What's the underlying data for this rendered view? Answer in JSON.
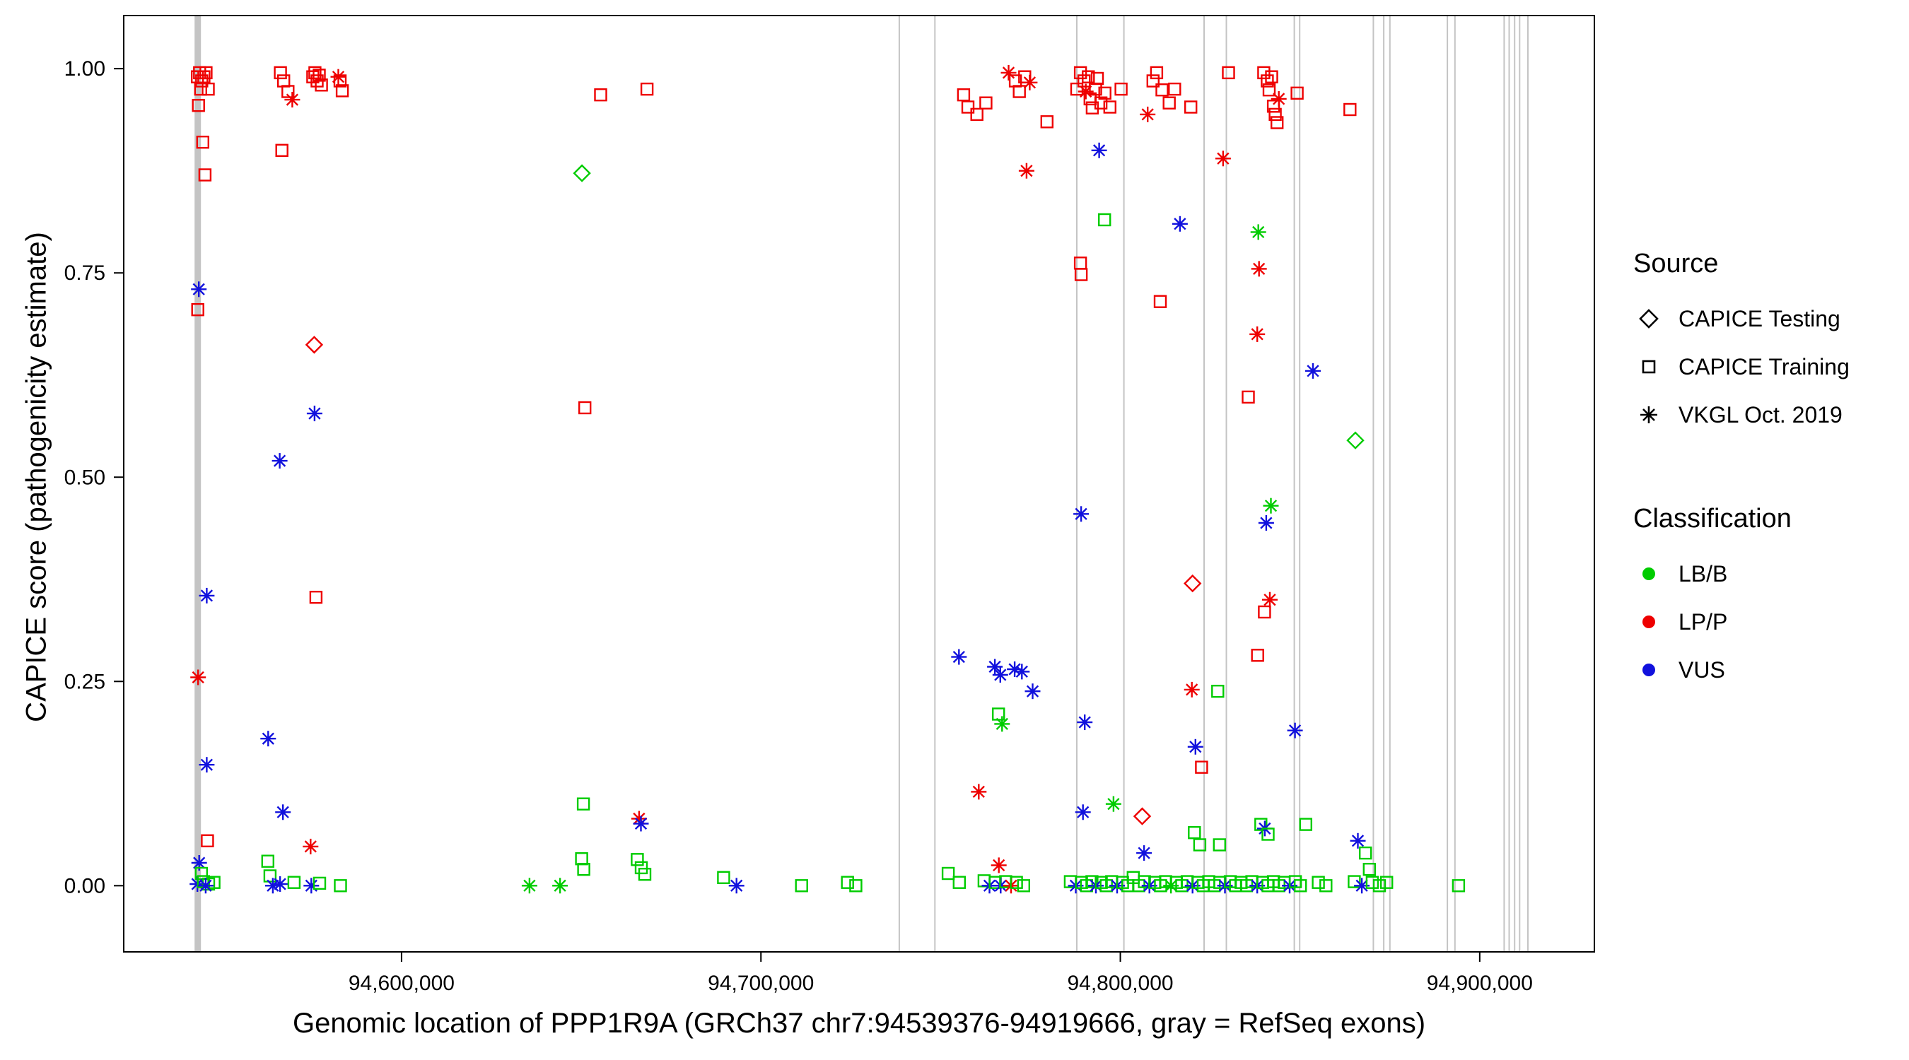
{
  "chart_data": {
    "type": "scatter",
    "title": "",
    "xlabel": "Genomic location of PPP1R9A (GRCh37 chr7:94539376-94919666, gray = RefSeq exons)",
    "ylabel": "CAPICE score (pathogenicity estimate)",
    "xlim": [
      94522700,
      94931900
    ],
    "ylim": [
      -0.081,
      1.065
    ],
    "grid": false,
    "legend_position": "right",
    "x_ticks": [
      {
        "v": 94600000,
        "label": "94,600,000"
      },
      {
        "v": 94700000,
        "label": "94,700,000"
      },
      {
        "v": 94800000,
        "label": "94,800,000"
      },
      {
        "v": 94900000,
        "label": "94,900,000"
      }
    ],
    "y_ticks": [
      {
        "v": 0.0,
        "label": "0.00"
      },
      {
        "v": 0.25,
        "label": "0.25"
      },
      {
        "v": 0.5,
        "label": "0.50"
      },
      {
        "v": 0.75,
        "label": "0.75"
      },
      {
        "v": 1.0,
        "label": "1.00"
      }
    ],
    "exon_color": "#C4C4C4",
    "exons": [
      {
        "x": 94543300,
        "w": 9
      },
      {
        "x": 94738500,
        "w": 2
      },
      {
        "x": 94748400,
        "w": 2
      },
      {
        "x": 94787900,
        "w": 2
      },
      {
        "x": 94801000,
        "w": 2
      },
      {
        "x": 94823300,
        "w": 2
      },
      {
        "x": 94829500,
        "w": 2
      },
      {
        "x": 94848400,
        "w": 2
      },
      {
        "x": 94849900,
        "w": 2
      },
      {
        "x": 94870400,
        "w": 2
      },
      {
        "x": 94873300,
        "w": 2
      },
      {
        "x": 94875000,
        "w": 2
      },
      {
        "x": 94891000,
        "w": 2
      },
      {
        "x": 94893100,
        "w": 2
      },
      {
        "x": 94906800,
        "w": 2
      },
      {
        "x": 94908200,
        "w": 2
      },
      {
        "x": 94909700,
        "w": 2
      },
      {
        "x": 94911100,
        "w": 2
      },
      {
        "x": 94913400,
        "w": 2
      }
    ],
    "class_colors": {
      "B": "#00CC00",
      "P": "#EE0000",
      "V": "#1111DD"
    },
    "shape_names": {
      "d": "diamond (CAPICE Testing)",
      "s": "square (CAPICE Training)",
      "a": "asterisk (VKGL Oct. 2019)"
    },
    "class_names": {
      "B": "LB/B",
      "P": "LP/P",
      "V": "VUS"
    },
    "legend": {
      "source": {
        "title": "Source",
        "items": [
          {
            "label": "CAPICE Testing",
            "shape": "diamond"
          },
          {
            "label": "CAPICE Training",
            "shape": "square"
          },
          {
            "label": "VKGL Oct. 2019",
            "shape": "asterisk"
          }
        ]
      },
      "classification": {
        "title": "Classification",
        "items": [
          {
            "label": "LB/B",
            "color": "#00CC00"
          },
          {
            "label": "LP/P",
            "color": "#EE0000"
          },
          {
            "label": "VUS",
            "color": "#1111DD"
          }
        ]
      }
    },
    "points_format": [
      "genomic_position",
      "capice_score",
      "shape",
      "classification"
    ],
    "points": [
      [
        94543200,
        0.99,
        "s",
        "P"
      ],
      [
        94543800,
        0.995,
        "s",
        "P"
      ],
      [
        94544400,
        0.985,
        "s",
        "P"
      ],
      [
        94545000,
        0.99,
        "s",
        "P"
      ],
      [
        94545600,
        0.995,
        "s",
        "P"
      ],
      [
        94544100,
        0.975,
        "s",
        "P"
      ],
      [
        94546200,
        0.975,
        "s",
        "P"
      ],
      [
        94543500,
        0.955,
        "s",
        "P"
      ],
      [
        94544700,
        0.91,
        "s",
        "P"
      ],
      [
        94545300,
        0.87,
        "s",
        "P"
      ],
      [
        94543600,
        0.73,
        "a",
        "V"
      ],
      [
        94543300,
        0.705,
        "s",
        "P"
      ],
      [
        94545800,
        0.355,
        "a",
        "V"
      ],
      [
        94543400,
        0.255,
        "a",
        "P"
      ],
      [
        94545800,
        0.148,
        "a",
        "V"
      ],
      [
        94546000,
        0.055,
        "s",
        "P"
      ],
      [
        94543700,
        0.028,
        "a",
        "V"
      ],
      [
        94544300,
        0.015,
        "s",
        "B"
      ],
      [
        94543200,
        0.002,
        "a",
        "V"
      ],
      [
        94544900,
        0.005,
        "s",
        "B"
      ],
      [
        94546300,
        0.002,
        "s",
        "B"
      ],
      [
        94547800,
        0.004,
        "s",
        "B"
      ],
      [
        94545500,
        0.0,
        "a",
        "V"
      ],
      [
        94566300,
        0.995,
        "s",
        "P"
      ],
      [
        94567200,
        0.985,
        "s",
        "P"
      ],
      [
        94568400,
        0.972,
        "s",
        "P"
      ],
      [
        94569600,
        0.962,
        "a",
        "P"
      ],
      [
        94566700,
        0.9,
        "s",
        "P"
      ],
      [
        94575300,
        0.99,
        "s",
        "P"
      ],
      [
        94575900,
        0.995,
        "s",
        "P"
      ],
      [
        94576500,
        0.985,
        "s",
        "P"
      ],
      [
        94577100,
        0.992,
        "s",
        "P"
      ],
      [
        94577700,
        0.98,
        "s",
        "P"
      ],
      [
        94582400,
        0.99,
        "a",
        "P"
      ],
      [
        94582900,
        0.985,
        "s",
        "P"
      ],
      [
        94583500,
        0.973,
        "s",
        "P"
      ],
      [
        94575700,
        0.662,
        "d",
        "P"
      ],
      [
        94575800,
        0.578,
        "a",
        "V"
      ],
      [
        94566100,
        0.52,
        "a",
        "V"
      ],
      [
        94576200,
        0.353,
        "s",
        "P"
      ],
      [
        94562900,
        0.18,
        "a",
        "V"
      ],
      [
        94567000,
        0.09,
        "a",
        "V"
      ],
      [
        94574700,
        0.048,
        "a",
        "P"
      ],
      [
        94562800,
        0.03,
        "s",
        "B"
      ],
      [
        94563400,
        0.012,
        "s",
        "B"
      ],
      [
        94564200,
        0.0,
        "a",
        "V"
      ],
      [
        94566200,
        0.002,
        "a",
        "V"
      ],
      [
        94570100,
        0.004,
        "s",
        "B"
      ],
      [
        94574900,
        0.0,
        "a",
        "V"
      ],
      [
        94577200,
        0.003,
        "s",
        "B"
      ],
      [
        94583000,
        0.0,
        "s",
        "B"
      ],
      [
        94650200,
        0.872,
        "d",
        "B"
      ],
      [
        94655400,
        0.968,
        "s",
        "P"
      ],
      [
        94668300,
        0.975,
        "s",
        "P"
      ],
      [
        94651000,
        0.585,
        "s",
        "P"
      ],
      [
        94650600,
        0.1,
        "s",
        "B"
      ],
      [
        94650100,
        0.033,
        "s",
        "B"
      ],
      [
        94650700,
        0.02,
        "s",
        "B"
      ],
      [
        94666100,
        0.082,
        "a",
        "P"
      ],
      [
        94666600,
        0.076,
        "a",
        "V"
      ],
      [
        94665600,
        0.032,
        "s",
        "B"
      ],
      [
        94666700,
        0.022,
        "s",
        "B"
      ],
      [
        94667700,
        0.014,
        "s",
        "B"
      ],
      [
        94635600,
        0.0,
        "a",
        "B"
      ],
      [
        94644100,
        0.0,
        "a",
        "B"
      ],
      [
        94689600,
        0.01,
        "s",
        "B"
      ],
      [
        94693200,
        0.0,
        "a",
        "V"
      ],
      [
        94711300,
        0.0,
        "s",
        "B"
      ],
      [
        94724100,
        0.004,
        "s",
        "B"
      ],
      [
        94726400,
        0.0,
        "s",
        "B"
      ],
      [
        94756400,
        0.968,
        "s",
        "P"
      ],
      [
        94757600,
        0.953,
        "s",
        "P"
      ],
      [
        94760100,
        0.944,
        "s",
        "P"
      ],
      [
        94762600,
        0.958,
        "s",
        "P"
      ],
      [
        94768900,
        0.995,
        "a",
        "P"
      ],
      [
        94770800,
        0.985,
        "s",
        "P"
      ],
      [
        94771900,
        0.972,
        "s",
        "P"
      ],
      [
        94773400,
        0.99,
        "s",
        "P"
      ],
      [
        94774800,
        0.983,
        "a",
        "P"
      ],
      [
        94773900,
        0.875,
        "a",
        "P"
      ],
      [
        94779600,
        0.935,
        "s",
        "P"
      ],
      [
        94787900,
        0.975,
        "s",
        "P"
      ],
      [
        94788900,
        0.995,
        "s",
        "P"
      ],
      [
        94789900,
        0.985,
        "s",
        "P"
      ],
      [
        94790400,
        0.972,
        "a",
        "P"
      ],
      [
        94791100,
        0.99,
        "s",
        "P"
      ],
      [
        94791600,
        0.963,
        "s",
        "P"
      ],
      [
        94792200,
        0.952,
        "s",
        "P"
      ],
      [
        94793100,
        0.975,
        "s",
        "P"
      ],
      [
        94793600,
        0.988,
        "s",
        "P"
      ],
      [
        94794600,
        0.958,
        "s",
        "P"
      ],
      [
        94795700,
        0.97,
        "s",
        "P"
      ],
      [
        94797100,
        0.953,
        "s",
        "P"
      ],
      [
        94800200,
        0.975,
        "s",
        "P"
      ],
      [
        94807600,
        0.944,
        "a",
        "P"
      ],
      [
        94809100,
        0.985,
        "s",
        "P"
      ],
      [
        94810100,
        0.995,
        "s",
        "P"
      ],
      [
        94811600,
        0.974,
        "s",
        "P"
      ],
      [
        94813600,
        0.958,
        "s",
        "P"
      ],
      [
        94815100,
        0.975,
        "s",
        "P"
      ],
      [
        94819600,
        0.953,
        "s",
        "P"
      ],
      [
        94830100,
        0.995,
        "s",
        "P"
      ],
      [
        94839900,
        0.995,
        "s",
        "P"
      ],
      [
        94840900,
        0.985,
        "s",
        "P"
      ],
      [
        94841400,
        0.974,
        "s",
        "P"
      ],
      [
        94842100,
        0.99,
        "s",
        "P"
      ],
      [
        94842600,
        0.954,
        "s",
        "P"
      ],
      [
        94843100,
        0.944,
        "s",
        "P"
      ],
      [
        94843600,
        0.934,
        "s",
        "P"
      ],
      [
        94844100,
        0.963,
        "a",
        "P"
      ],
      [
        94849200,
        0.97,
        "s",
        "P"
      ],
      [
        94863900,
        0.95,
        "s",
        "P"
      ],
      [
        94794100,
        0.9,
        "a",
        "V"
      ],
      [
        94828600,
        0.89,
        "a",
        "P"
      ],
      [
        94795600,
        0.815,
        "s",
        "B"
      ],
      [
        94816600,
        0.81,
        "a",
        "V"
      ],
      [
        94838400,
        0.8,
        "a",
        "B"
      ],
      [
        94788900,
        0.762,
        "s",
        "P"
      ],
      [
        94789100,
        0.748,
        "s",
        "P"
      ],
      [
        94838600,
        0.755,
        "a",
        "P"
      ],
      [
        94811100,
        0.715,
        "s",
        "P"
      ],
      [
        94838100,
        0.675,
        "a",
        "P"
      ],
      [
        94853600,
        0.63,
        "a",
        "V"
      ],
      [
        94835600,
        0.598,
        "s",
        "P"
      ],
      [
        94865400,
        0.545,
        "d",
        "B"
      ],
      [
        94789100,
        0.455,
        "a",
        "V"
      ],
      [
        94841900,
        0.465,
        "a",
        "B"
      ],
      [
        94840600,
        0.444,
        "a",
        "V"
      ],
      [
        94820100,
        0.37,
        "d",
        "P"
      ],
      [
        94841600,
        0.35,
        "a",
        "P"
      ],
      [
        94840100,
        0.335,
        "s",
        "P"
      ],
      [
        94838200,
        0.282,
        "s",
        "P"
      ],
      [
        94755100,
        0.28,
        "a",
        "V"
      ],
      [
        94765100,
        0.268,
        "a",
        "V"
      ],
      [
        94766600,
        0.258,
        "a",
        "V"
      ],
      [
        94770600,
        0.265,
        "a",
        "V"
      ],
      [
        94772600,
        0.262,
        "a",
        "V"
      ],
      [
        94775600,
        0.238,
        "a",
        "V"
      ],
      [
        94766100,
        0.21,
        "s",
        "B"
      ],
      [
        94767100,
        0.198,
        "a",
        "B"
      ],
      [
        94790100,
        0.2,
        "a",
        "V"
      ],
      [
        94848600,
        0.19,
        "a",
        "V"
      ],
      [
        94820900,
        0.17,
        "a",
        "V"
      ],
      [
        94819900,
        0.24,
        "a",
        "P"
      ],
      [
        94822600,
        0.145,
        "s",
        "P"
      ],
      [
        94827100,
        0.238,
        "s",
        "B"
      ],
      [
        94760600,
        0.115,
        "a",
        "P"
      ],
      [
        94789600,
        0.09,
        "a",
        "V"
      ],
      [
        94798100,
        0.1,
        "a",
        "B"
      ],
      [
        94806100,
        0.085,
        "d",
        "P"
      ],
      [
        94806600,
        0.04,
        "a",
        "V"
      ],
      [
        94820600,
        0.065,
        "s",
        "B"
      ],
      [
        94822100,
        0.05,
        "s",
        "B"
      ],
      [
        94827600,
        0.05,
        "s",
        "B"
      ],
      [
        94839100,
        0.075,
        "s",
        "B"
      ],
      [
        94840200,
        0.07,
        "a",
        "V"
      ],
      [
        94841100,
        0.063,
        "s",
        "B"
      ],
      [
        94851600,
        0.075,
        "s",
        "B"
      ],
      [
        94766200,
        0.025,
        "a",
        "P"
      ],
      [
        94866100,
        0.055,
        "a",
        "V"
      ],
      [
        94868200,
        0.04,
        "s",
        "B"
      ],
      [
        94869300,
        0.02,
        "s",
        "B"
      ],
      [
        94752100,
        0.015,
        "s",
        "B"
      ],
      [
        94755200,
        0.004,
        "s",
        "B"
      ],
      [
        94762100,
        0.006,
        "s",
        "B"
      ],
      [
        94763600,
        0.0,
        "a",
        "V"
      ],
      [
        94765200,
        0.004,
        "s",
        "B"
      ],
      [
        94766700,
        0.0,
        "a",
        "V"
      ],
      [
        94768100,
        0.005,
        "s",
        "B"
      ],
      [
        94769600,
        0.0,
        "a",
        "P"
      ],
      [
        94771100,
        0.004,
        "s",
        "B"
      ],
      [
        94773100,
        0.0,
        "s",
        "B"
      ],
      [
        94786100,
        0.005,
        "s",
        "B"
      ],
      [
        94787600,
        0.0,
        "a",
        "V"
      ],
      [
        94789200,
        0.004,
        "s",
        "B"
      ],
      [
        94790600,
        0.0,
        "s",
        "B"
      ],
      [
        94792100,
        0.005,
        "s",
        "B"
      ],
      [
        94793200,
        0.0,
        "a",
        "V"
      ],
      [
        94794700,
        0.004,
        "s",
        "B"
      ],
      [
        94796100,
        0.0,
        "s",
        "B"
      ],
      [
        94797600,
        0.005,
        "s",
        "B"
      ],
      [
        94799100,
        0.0,
        "a",
        "V"
      ],
      [
        94800600,
        0.004,
        "s",
        "B"
      ],
      [
        94802100,
        0.0,
        "s",
        "B"
      ],
      [
        94803600,
        0.01,
        "s",
        "B"
      ],
      [
        94805100,
        0.0,
        "s",
        "B"
      ],
      [
        94806700,
        0.005,
        "s",
        "B"
      ],
      [
        94808100,
        0.0,
        "a",
        "V"
      ],
      [
        94809600,
        0.004,
        "s",
        "B"
      ],
      [
        94811200,
        0.0,
        "s",
        "B"
      ],
      [
        94812600,
        0.005,
        "s",
        "B"
      ],
      [
        94814100,
        0.0,
        "a",
        "B"
      ],
      [
        94815600,
        0.004,
        "s",
        "B"
      ],
      [
        94817100,
        0.0,
        "s",
        "B"
      ],
      [
        94818600,
        0.005,
        "s",
        "B"
      ],
      [
        94820100,
        0.0,
        "a",
        "V"
      ],
      [
        94821600,
        0.004,
        "s",
        "B"
      ],
      [
        94823100,
        0.0,
        "s",
        "B"
      ],
      [
        94824600,
        0.005,
        "s",
        "B"
      ],
      [
        94826100,
        0.0,
        "s",
        "B"
      ],
      [
        94827700,
        0.004,
        "s",
        "B"
      ],
      [
        94829100,
        0.0,
        "a",
        "V"
      ],
      [
        94830600,
        0.005,
        "s",
        "B"
      ],
      [
        94832100,
        0.0,
        "s",
        "B"
      ],
      [
        94833600,
        0.004,
        "s",
        "B"
      ],
      [
        94835100,
        0.0,
        "s",
        "B"
      ],
      [
        94836600,
        0.005,
        "s",
        "B"
      ],
      [
        94838100,
        0.0,
        "a",
        "V"
      ],
      [
        94839600,
        0.004,
        "s",
        "B"
      ],
      [
        94841100,
        0.0,
        "s",
        "B"
      ],
      [
        94842600,
        0.005,
        "s",
        "B"
      ],
      [
        94844100,
        0.0,
        "s",
        "B"
      ],
      [
        94845600,
        0.004,
        "s",
        "B"
      ],
      [
        94847100,
        0.0,
        "a",
        "V"
      ],
      [
        94848700,
        0.005,
        "s",
        "B"
      ],
      [
        94850100,
        0.0,
        "s",
        "B"
      ],
      [
        94855100,
        0.004,
        "s",
        "B"
      ],
      [
        94857200,
        0.0,
        "s",
        "B"
      ],
      [
        94865100,
        0.005,
        "s",
        "B"
      ],
      [
        94867200,
        0.0,
        "a",
        "V"
      ],
      [
        94870100,
        0.004,
        "s",
        "B"
      ],
      [
        94872100,
        0.0,
        "s",
        "B"
      ],
      [
        94874100,
        0.004,
        "s",
        "B"
      ],
      [
        94894100,
        0.0,
        "s",
        "B"
      ]
    ]
  }
}
